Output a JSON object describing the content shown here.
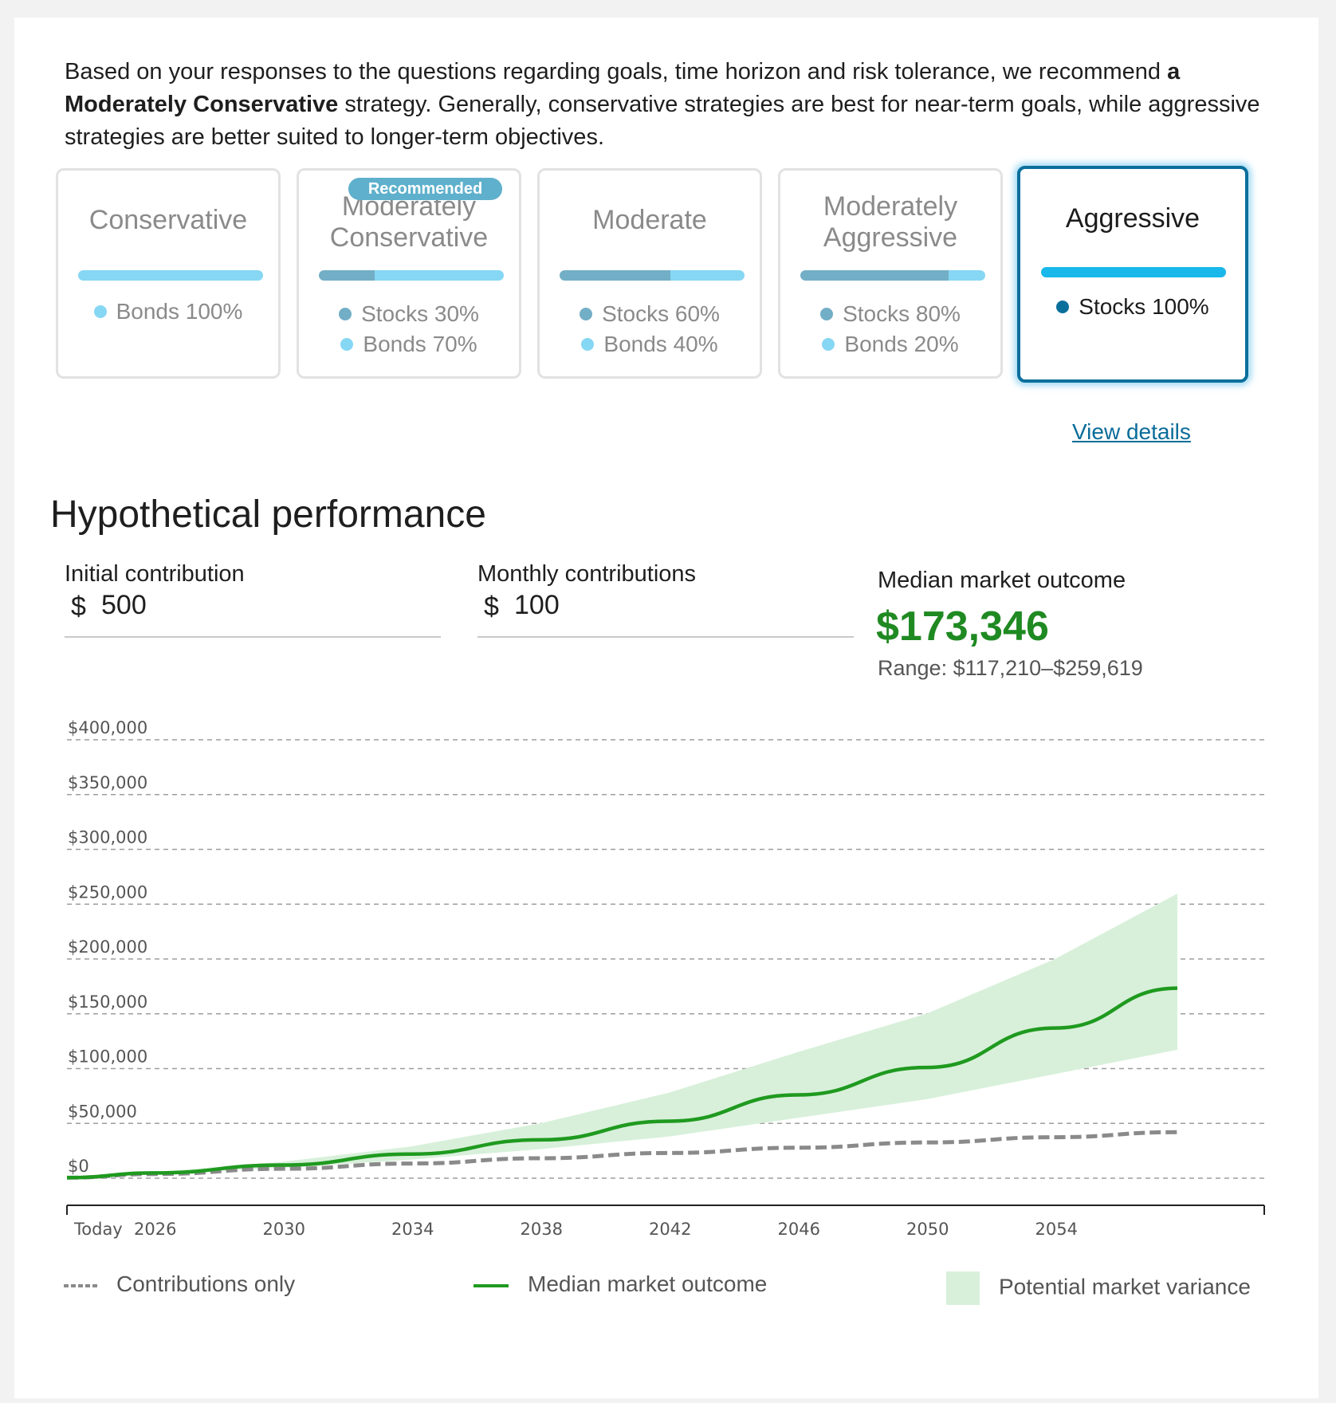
{
  "intro": {
    "before": "Based on your responses to the questions regarding goals, time horizon and risk tolerance, we recommend ",
    "bold": "a Moderately Conservative",
    "after": " strategy. Generally, conservative strategies are best for near-term goals, while aggressive strategies are better suited to longer-term objectives."
  },
  "badge": "Recommended",
  "strategies": [
    {
      "title": "Conservative",
      "stocks": 0,
      "stocks_label": "",
      "bonds_label": "Bonds 100%",
      "selected": false
    },
    {
      "title": "Moderately Conservative",
      "stocks": 30,
      "stocks_label": "Stocks 30%",
      "bonds_label": "Bonds 70%",
      "selected": false
    },
    {
      "title": "Moderate",
      "stocks": 60,
      "stocks_label": "Stocks 60%",
      "bonds_label": "Bonds 40%",
      "selected": false
    },
    {
      "title": "Moderately Aggressive",
      "stocks": 80,
      "stocks_label": "Stocks 80%",
      "bonds_label": "Bonds 20%",
      "selected": false
    },
    {
      "title": "Aggressive",
      "stocks": 100,
      "stocks_label": "Stocks 100%",
      "bonds_label": "",
      "selected": true
    }
  ],
  "view_details": "View details",
  "performance": {
    "title": "Hypothetical performance",
    "initial_label": "Initial contribution",
    "initial_value": "500",
    "monthly_label": "Monthly contributions",
    "monthly_value": "100",
    "currency": "$",
    "outcome_label": "Median market outcome",
    "outcome_value": "$173,346",
    "outcome_range": "Range: $117,210–$259,619"
  },
  "colors": {
    "median": "#1f9a1f",
    "variance": "#d8f0da",
    "contributions": "#8a8a8a",
    "accent": "#0b6f9c"
  },
  "chart_data": {
    "type": "area",
    "x": [
      "Today",
      2026,
      2030,
      2034,
      2038,
      2042,
      2046,
      2050,
      2054,
      2057
    ],
    "ylim": [
      0,
      400000
    ],
    "y_ticks": [
      "$0",
      "$50,000",
      "$100,000",
      "$150,000",
      "$200,000",
      "$250,000",
      "$300,000",
      "$350,000",
      "$400,000"
    ],
    "y_tick_values": [
      0,
      50000,
      100000,
      150000,
      200000,
      250000,
      300000,
      350000,
      400000
    ],
    "x_ticks": [
      "Today",
      "2026",
      "2030",
      "2034",
      "2038",
      "2042",
      "2046",
      "2050",
      "2054"
    ],
    "x_tick_years": [
      2023.3,
      2026,
      2030,
      2034,
      2038,
      2042,
      2046,
      2050,
      2054
    ],
    "grid": true,
    "series": [
      {
        "name": "Contributions only",
        "style": "dashed",
        "x": [
          2023.3,
          2026,
          2030,
          2034,
          2038,
          2042,
          2046,
          2050,
          2054,
          2057.8
        ],
        "values": [
          500,
          3800,
          8600,
          13400,
          18200,
          23000,
          27800,
          32600,
          37400,
          42000
        ]
      },
      {
        "name": "Median market outcome",
        "style": "line",
        "x": [
          2023.3,
          2026,
          2030,
          2034,
          2038,
          2042,
          2046,
          2050,
          2054,
          2057.8
        ],
        "values": [
          500,
          4800,
          12000,
          22000,
          35000,
          52000,
          76000,
          101000,
          137000,
          173346
        ]
      },
      {
        "name": "Potential market variance",
        "style": "band",
        "x": [
          2023.3,
          2026,
          2030,
          2034,
          2038,
          2042,
          2046,
          2050,
          2054,
          2057.8
        ],
        "low": [
          500,
          4000,
          9500,
          17000,
          26500,
          38000,
          55000,
          72000,
          95000,
          117210
        ],
        "high": [
          500,
          5600,
          15000,
          29000,
          50000,
          78000,
          115000,
          150000,
          200000,
          259619
        ]
      }
    ]
  },
  "legend": {
    "contributions": "Contributions only",
    "median": "Median market outcome",
    "variance": "Potential market variance"
  }
}
